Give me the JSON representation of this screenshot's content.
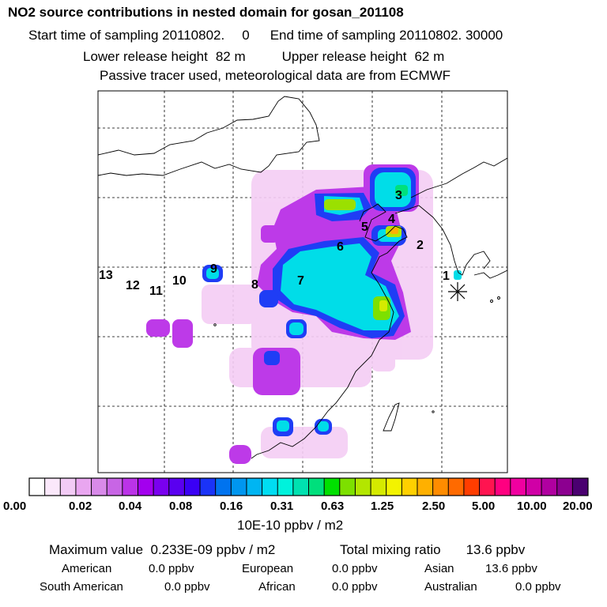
{
  "header": {
    "title": "NO2 source contributions in nested domain for gosan_201108",
    "start_label": "Start time of sampling 20110802.",
    "start_value": "0",
    "end_label": "End time of sampling 20110802. 30000",
    "lower_label": "Lower release height",
    "lower_value": "82 m",
    "upper_label": "Upper release height",
    "upper_value": "62 m",
    "tracer_note": "Passive tracer used, meteorological data are from ECMWF"
  },
  "map": {
    "source_regions": [
      "1",
      "2",
      "3",
      "4",
      "5",
      "6",
      "7",
      "8",
      "9",
      "10",
      "11",
      "12",
      "13"
    ],
    "receptor_marker": "asterisk-marker"
  },
  "colorbar": {
    "labels": [
      "0.00",
      "0.02",
      "0.04",
      "0.08",
      "0.16",
      "0.31",
      "0.63",
      "1.25",
      "2.50",
      "5.00",
      "10.00",
      "20.00"
    ],
    "colors": [
      "#ffffff",
      "#fbe8fb",
      "#f2cbf5",
      "#e9a6f0",
      "#d88ae9",
      "#c865e5",
      "#bb33e8",
      "#a300ee",
      "#7a00ef",
      "#5a00f0",
      "#3a00f5",
      "#1a33f7",
      "#0073ef",
      "#0096ef",
      "#00b5f2",
      "#00ddf2",
      "#00f2dc",
      "#00e1b0",
      "#00df7c",
      "#00e000",
      "#7de000",
      "#b3e600",
      "#d5ea00",
      "#f3f300",
      "#ffd000",
      "#ffb000",
      "#ff8c00",
      "#ff6a00",
      "#ff3d00",
      "#ff1450",
      "#ff0080",
      "#f000a0",
      "#d000a6",
      "#b000a0",
      "#8c0090",
      "#4a0070"
    ],
    "unit": "10E-10 ppbv / m2"
  },
  "summary": {
    "max_label": "Maximum value",
    "max_value": "0.233E-09 ppbv / m2",
    "total_label": "Total mixing ratio",
    "total_value": "13.6 ppbv",
    "regions": [
      {
        "name": "American",
        "value": "0.0 ppbv"
      },
      {
        "name": "European",
        "value": "0.0 ppbv"
      },
      {
        "name": "Asian",
        "value": "13.6 ppbv"
      },
      {
        "name": "South American",
        "value": "0.0 ppbv"
      },
      {
        "name": "African",
        "value": "0.0 ppbv"
      },
      {
        "name": "Australian",
        "value": "0.0 ppbv"
      }
    ]
  }
}
